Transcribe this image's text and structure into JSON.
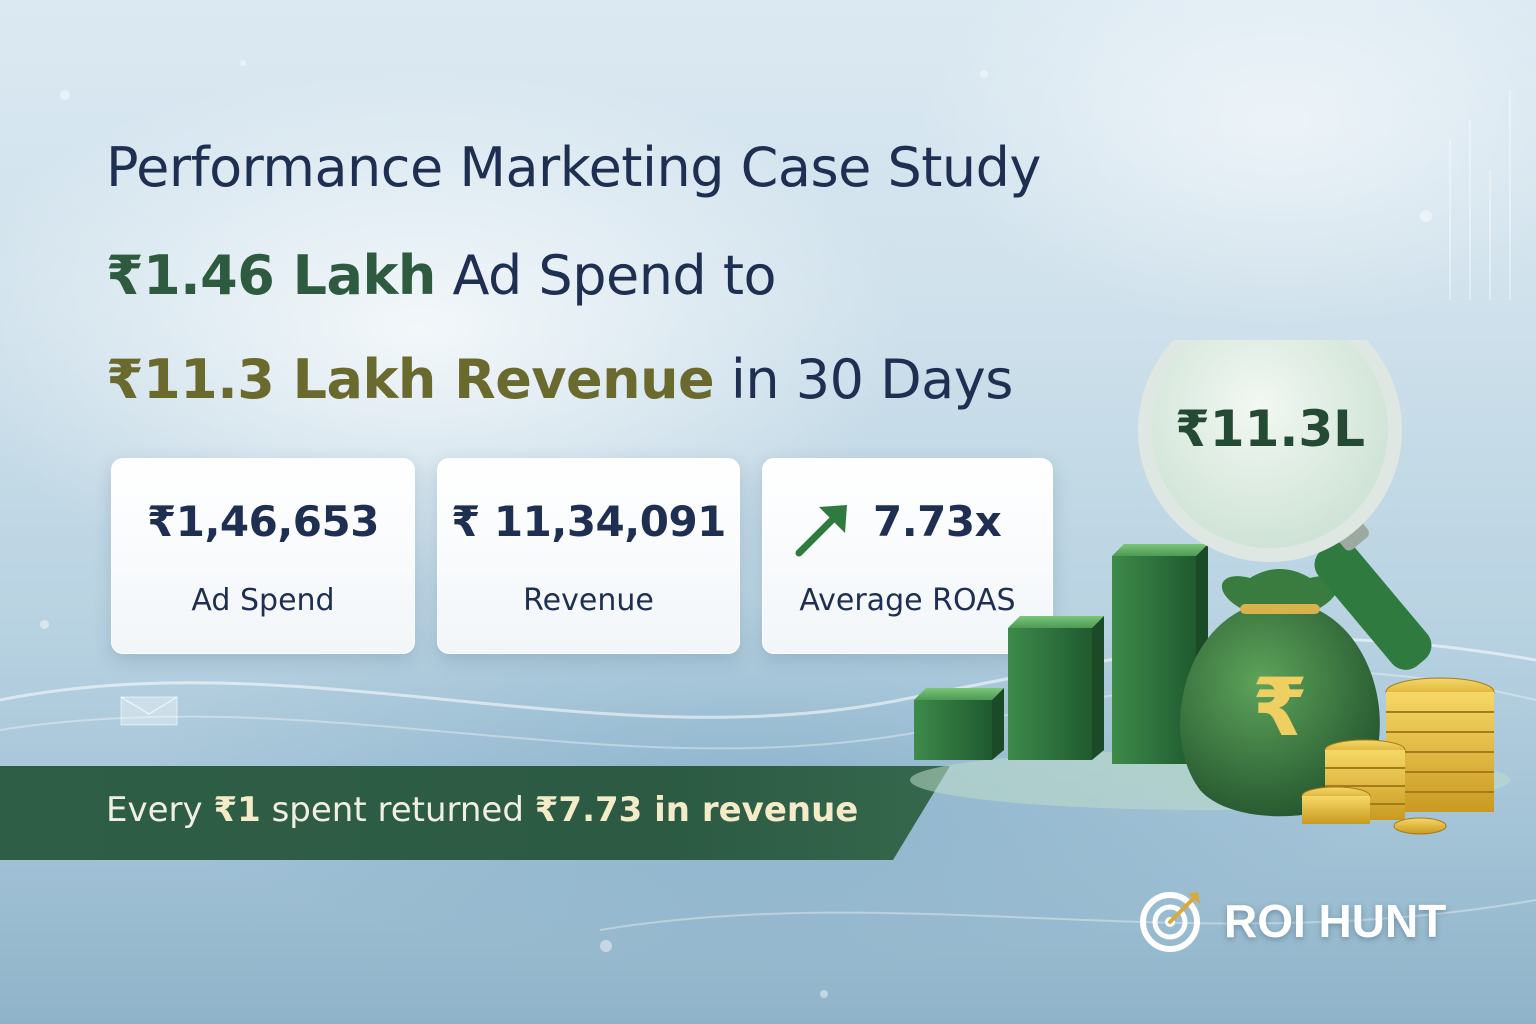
{
  "headline": {
    "line1": "Performance Marketing Case Study",
    "line2_highlight": "₹1.46 Lakh",
    "line2_rest": " Ad Spend to",
    "line3_highlight": "₹11.3 Lakh Revenue",
    "line3_rest": " in 30 Days"
  },
  "cards": {
    "ad_spend": {
      "value": "₹1,46,653",
      "label": "Ad Spend"
    },
    "revenue": {
      "value": "₹ 11,34,091",
      "label": "Revenue"
    },
    "roas": {
      "value": "7.73x",
      "label": "Average ROAS",
      "icon": "trend-up-arrow-icon"
    }
  },
  "banner": {
    "prefix": "Every ",
    "one_rupee": "₹1",
    "middle": " spent returned ",
    "result": "₹7.73 in revenue"
  },
  "illustration": {
    "magnifier_text": "₹11.3L",
    "bag_symbol": "₹"
  },
  "brand": {
    "name": "ROI HUNT",
    "icon": "target-arrow-icon"
  },
  "colors": {
    "navy": "#1e2f52",
    "green": "#2e5a40",
    "gold": "#6a6a2e",
    "banner": "#2f5e46"
  }
}
